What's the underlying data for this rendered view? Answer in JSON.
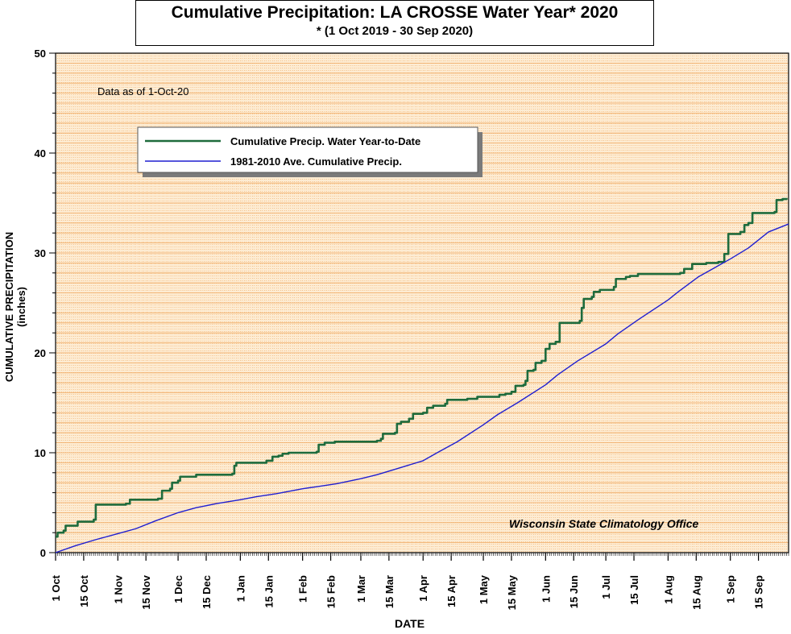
{
  "chart_data": {
    "type": "line",
    "title": "Cumulative Precipitation: LA CROSSE Water Year* 2020",
    "subtitle": "* (1 Oct 2019 - 30 Sep 2020)",
    "xlabel": "DATE",
    "ylabel": "CUMULATIVE PRECIPITATION (inches)",
    "ylim": [
      0,
      50
    ],
    "y_ticks": [
      "0",
      "10",
      "20",
      "30",
      "40",
      "50"
    ],
    "x_ticks": [
      "1 Oct",
      "15 Oct",
      "1 Nov",
      "15 Nov",
      "1 Dec",
      "15 Dec",
      "1 Jan",
      "15 Jan",
      "1 Feb",
      "15 Feb",
      "1 Mar",
      "15 Mar",
      "1 Apr",
      "15 Apr",
      "1 May",
      "15 May",
      "1 Jun",
      "15 Jun",
      "1 Jul",
      "15 Jul",
      "1 Aug",
      "15 Aug",
      "1 Sep",
      "15 Sep"
    ],
    "x_tick_day": [
      0,
      14,
      31,
      45,
      61,
      75,
      92,
      106,
      123,
      137,
      152,
      166,
      183,
      197,
      213,
      227,
      244,
      258,
      274,
      288,
      305,
      319,
      336,
      350
    ],
    "xlim_days": [
      0,
      365
    ],
    "grid": true,
    "legend_placement": "top-left",
    "annotations": {
      "data_as_of": "Data as of 1-Oct-20",
      "credit": "Wisconsin State Climatology Office"
    },
    "series": [
      {
        "name": "Cumulative Precip.  Water Year-to-Date",
        "color": "#1e6b3c",
        "style": "step",
        "points": [
          [
            0,
            1.6
          ],
          [
            1,
            2.0
          ],
          [
            4,
            2.2
          ],
          [
            5,
            2.7
          ],
          [
            11,
            3.1
          ],
          [
            19,
            3.3
          ],
          [
            20,
            4.8
          ],
          [
            35,
            4.9
          ],
          [
            37,
            5.3
          ],
          [
            51,
            5.4
          ],
          [
            53,
            6.2
          ],
          [
            57,
            6.4
          ],
          [
            58,
            7.0
          ],
          [
            61,
            7.2
          ],
          [
            62,
            7.6
          ],
          [
            70,
            7.8
          ],
          [
            88,
            7.9
          ],
          [
            89,
            8.7
          ],
          [
            90,
            9.0
          ],
          [
            105,
            9.2
          ],
          [
            108,
            9.6
          ],
          [
            111,
            9.7
          ],
          [
            113,
            9.9
          ],
          [
            116,
            10.0
          ],
          [
            130,
            10.1
          ],
          [
            131,
            10.8
          ],
          [
            134,
            11.0
          ],
          [
            139,
            11.1
          ],
          [
            160,
            11.2
          ],
          [
            162,
            11.4
          ],
          [
            163,
            11.9
          ],
          [
            169,
            12.0
          ],
          [
            170,
            12.9
          ],
          [
            172,
            13.1
          ],
          [
            176,
            13.4
          ],
          [
            178,
            13.9
          ],
          [
            183,
            14.0
          ],
          [
            185,
            14.5
          ],
          [
            188,
            14.7
          ],
          [
            194,
            14.9
          ],
          [
            195,
            15.3
          ],
          [
            205,
            15.4
          ],
          [
            210,
            15.6
          ],
          [
            221,
            15.8
          ],
          [
            224,
            15.9
          ],
          [
            227,
            16.1
          ],
          [
            229,
            16.7
          ],
          [
            233,
            16.8
          ],
          [
            234,
            17.2
          ],
          [
            235,
            18.2
          ],
          [
            238,
            18.3
          ],
          [
            239,
            19.0
          ],
          [
            242,
            19.2
          ],
          [
            244,
            20.4
          ],
          [
            246,
            20.9
          ],
          [
            249,
            21.1
          ],
          [
            251,
            23.0
          ],
          [
            261,
            23.2
          ],
          [
            262,
            24.5
          ],
          [
            263,
            25.4
          ],
          [
            267,
            25.6
          ],
          [
            268,
            26.1
          ],
          [
            271,
            26.3
          ],
          [
            278,
            26.6
          ],
          [
            279,
            27.4
          ],
          [
            284,
            27.6
          ],
          [
            286,
            27.7
          ],
          [
            290,
            27.9
          ],
          [
            311,
            28.0
          ],
          [
            313,
            28.4
          ],
          [
            317,
            28.9
          ],
          [
            324,
            29.0
          ],
          [
            330,
            29.1
          ],
          [
            333,
            29.9
          ],
          [
            335,
            31.9
          ],
          [
            341,
            32.1
          ],
          [
            343,
            32.8
          ],
          [
            345,
            33.0
          ],
          [
            347,
            34.0
          ],
          [
            358,
            34.1
          ],
          [
            359,
            35.3
          ],
          [
            362,
            35.4
          ],
          [
            364,
            35.5
          ]
        ]
      },
      {
        "name": "1981-2010 Ave. Cumulative Precip.",
        "color": "#1f1fd1",
        "style": "smooth",
        "points": [
          [
            0,
            0.0
          ],
          [
            10,
            0.7
          ],
          [
            20,
            1.3
          ],
          [
            31,
            1.9
          ],
          [
            40,
            2.4
          ],
          [
            50,
            3.2
          ],
          [
            61,
            4.0
          ],
          [
            70,
            4.5
          ],
          [
            80,
            4.9
          ],
          [
            92,
            5.3
          ],
          [
            100,
            5.6
          ],
          [
            110,
            5.9
          ],
          [
            123,
            6.4
          ],
          [
            130,
            6.6
          ],
          [
            140,
            6.9
          ],
          [
            152,
            7.4
          ],
          [
            160,
            7.8
          ],
          [
            170,
            8.4
          ],
          [
            183,
            9.2
          ],
          [
            190,
            10.0
          ],
          [
            200,
            11.1
          ],
          [
            213,
            12.8
          ],
          [
            220,
            13.8
          ],
          [
            230,
            15.0
          ],
          [
            244,
            16.8
          ],
          [
            250,
            17.8
          ],
          [
            260,
            19.2
          ],
          [
            274,
            20.9
          ],
          [
            280,
            21.9
          ],
          [
            290,
            23.3
          ],
          [
            305,
            25.3
          ],
          [
            310,
            26.1
          ],
          [
            320,
            27.6
          ],
          [
            336,
            29.4
          ],
          [
            345,
            30.5
          ],
          [
            355,
            32.1
          ],
          [
            365,
            32.9
          ]
        ]
      }
    ]
  }
}
